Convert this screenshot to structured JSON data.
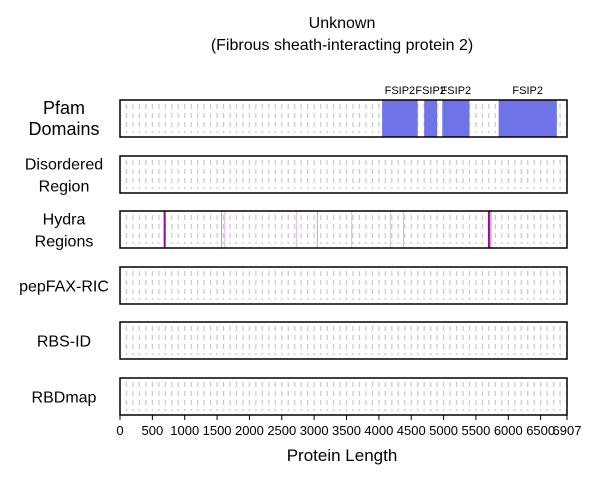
{
  "chart_data": {
    "type": "track",
    "title_line1": "Unknown",
    "title_line2": "(Fibrous sheath-interacting protein 2)",
    "xlabel": "Protein Length",
    "protein_length": 6907,
    "xlim": [
      0,
      6907
    ],
    "x_ticks": [
      0,
      500,
      1000,
      1500,
      2000,
      2500,
      3000,
      3500,
      4000,
      4500,
      5000,
      5500,
      6000,
      6500,
      6907
    ],
    "tracks": [
      {
        "key": "pfam",
        "label_lines": [
          "Pfam",
          "Domains"
        ]
      },
      {
        "key": "disordered",
        "label_lines": [
          "Disordered",
          "Region"
        ]
      },
      {
        "key": "hydra",
        "label_lines": [
          "Hydra",
          "Regions"
        ]
      },
      {
        "key": "pepfax",
        "label_lines": [
          "pepFAX-RIC"
        ]
      },
      {
        "key": "rbsid",
        "label_lines": [
          "RBS-ID"
        ]
      },
      {
        "key": "rbdmap",
        "label_lines": [
          "RBDmap"
        ]
      }
    ],
    "pfam_domains": [
      {
        "name": "FSIP2",
        "start": 4050,
        "end": 4600
      },
      {
        "name": "FSIP2",
        "start": 4700,
        "end": 4900
      },
      {
        "name": "FSIP2",
        "start": 4980,
        "end": 5400
      },
      {
        "name": "FSIP2",
        "start": 5850,
        "end": 6750
      }
    ],
    "hydra_lines": [
      {
        "pos": 690,
        "strength": 1.0
      },
      {
        "pos": 1570,
        "strength": 0.4
      },
      {
        "pos": 1620,
        "strength": 0.2
      },
      {
        "pos": 2730,
        "strength": 0.2
      },
      {
        "pos": 3050,
        "strength": 0.35
      },
      {
        "pos": 3580,
        "strength": 0.2
      },
      {
        "pos": 4180,
        "strength": 0.2
      },
      {
        "pos": 4380,
        "strength": 0.15
      },
      {
        "pos": 5700,
        "strength": 1.0
      },
      {
        "pos": 5730,
        "strength": 0.5
      }
    ],
    "dash_spacing": 100,
    "colors": {
      "domain": "#6f73e8",
      "hydra": "#8a0f8a",
      "dash": "#cccccc",
      "frame": "#000000"
    }
  }
}
